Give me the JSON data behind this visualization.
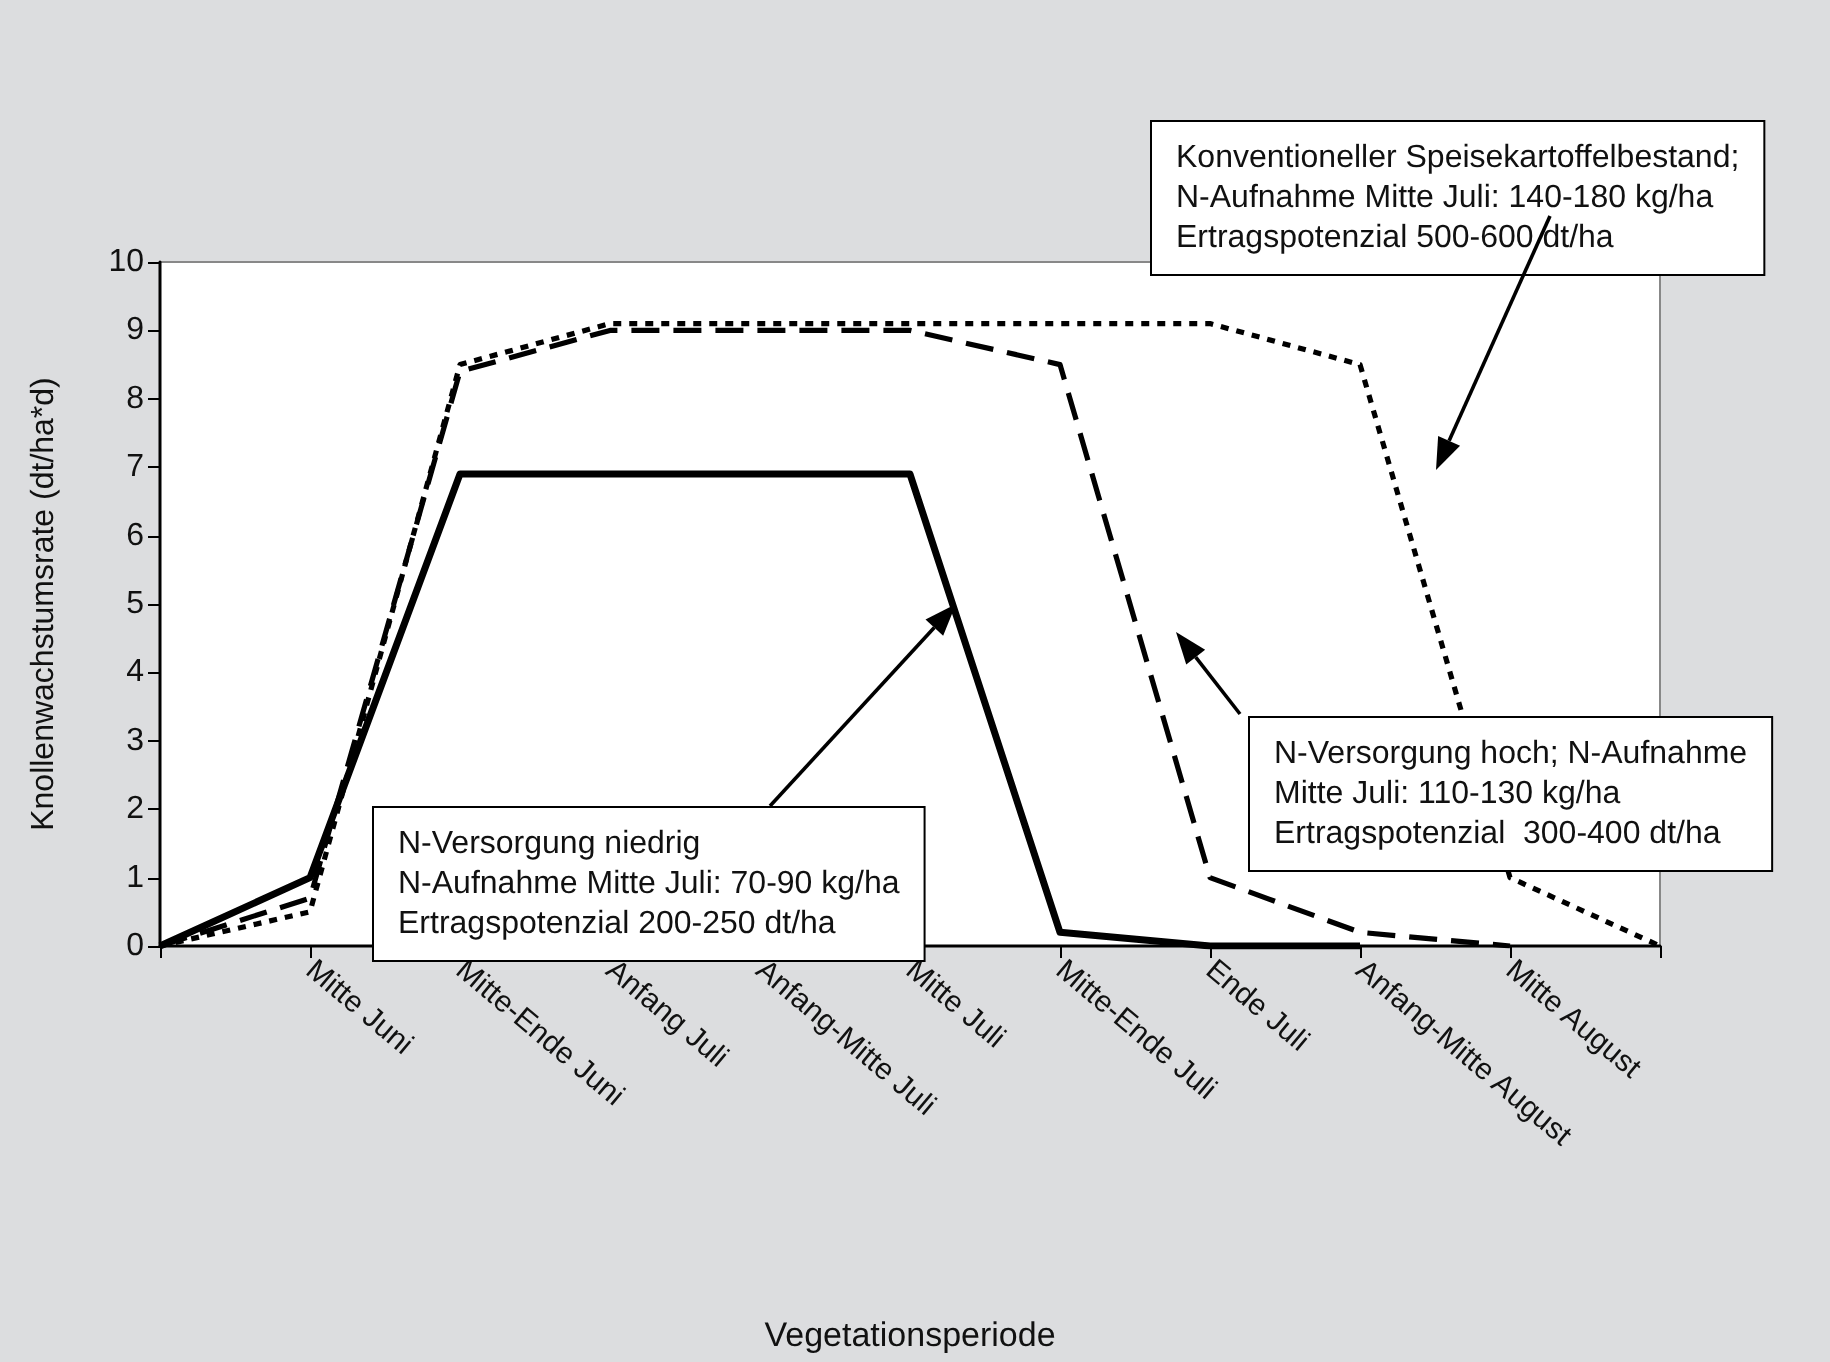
{
  "chart_data": {
    "type": "line",
    "xlabel": "Vegetationsperiode",
    "ylabel": "Knollenwachstumsrate (dt/ha*d)",
    "categories": [
      null,
      "Mitte Juni",
      "Mitte-Ende Juni",
      "Anfang Juli",
      "Anfang-Mitte Juli",
      "Mitte Juli",
      "Mitte-Ende Juli",
      "Ende Juli",
      "Anfang-Mitte August",
      "Mitte August",
      null
    ],
    "series": [
      {
        "color": "#000000",
        "line_style": "solid",
        "values": [
          0,
          1,
          6.9,
          6.9,
          6.9,
          6.9,
          0.2,
          0,
          0,
          null,
          null
        ]
      },
      {
        "color": "#000000",
        "line_style": "dashed",
        "values": [
          0,
          0.7,
          8.4,
          9,
          9,
          9,
          8.5,
          1,
          0.2,
          0,
          null
        ]
      },
      {
        "color": "#000000",
        "line_style": "dotted",
        "values": [
          0,
          0.5,
          8.5,
          9.1,
          9.1,
          9.1,
          9.1,
          9.1,
          8.5,
          1,
          0
        ]
      }
    ],
    "ylim": [
      0,
      10
    ],
    "yticks": [
      0,
      1,
      2,
      3,
      4,
      5,
      6,
      7,
      8,
      9,
      10
    ],
    "grid": false,
    "marker": "none",
    "annotations": [
      "Konventioneller Speisekartoffelbestand;\nN-Aufnahme Mitte Juli: 140-180 kg/ha\nErtragspotenzial 500-600 dt/ha",
      "N-Versorgung hoch; N-Aufnahme\nMitte Juli: 110-130 kg/ha\nErtragspotenzial  300-400 dt/ha",
      "N-Versorgung niedrig\nN-Aufnahme Mitte Juli: 70-90 kg/ha\nErtragspotenzial 200-250 dt/ha"
    ]
  }
}
